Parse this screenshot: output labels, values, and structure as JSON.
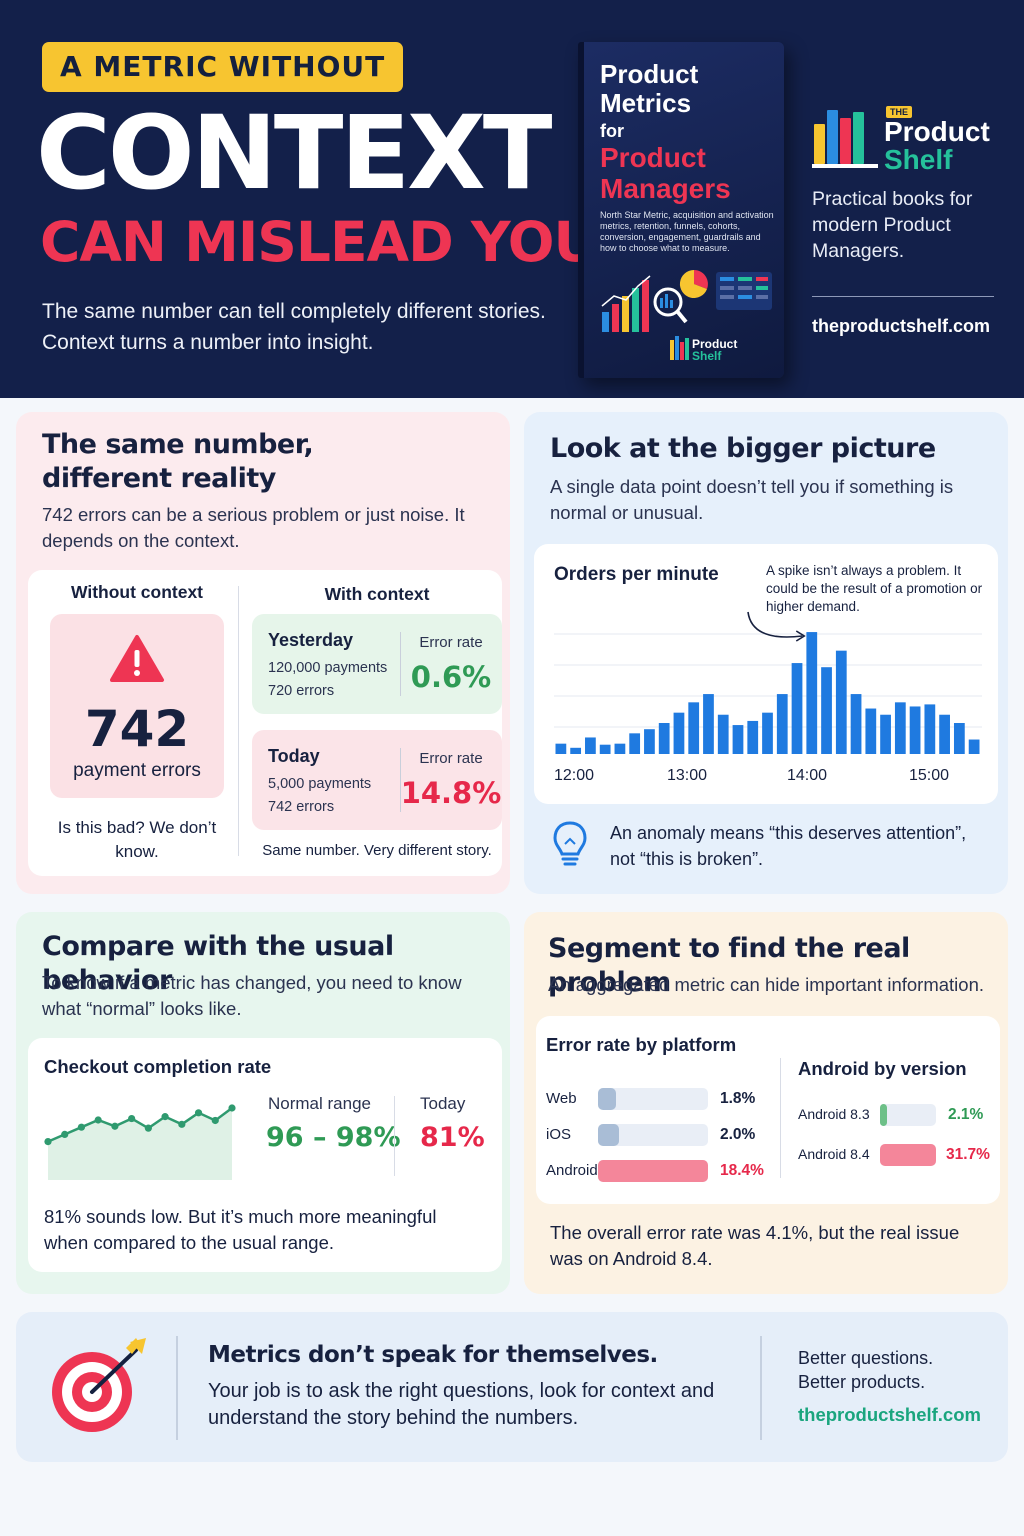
{
  "header": {
    "tag": "A METRIC WITHOUT",
    "headline": "CONTEXT",
    "headline_red": "CAN MISLEAD YOU",
    "subtitle": "The same number can tell completely different stories. Context turns a number into insight.",
    "book": {
      "title_line1": "Product Metrics",
      "title_for": "for",
      "title_red": "Product Managers",
      "description": "North Star Metric, acquisition and activation metrics, retention, funnels, cohorts, conversion, engagement, guardrails and how to choose what to measure.",
      "brand_line1": "Product",
      "brand_line2": "Shelf"
    },
    "brand": {
      "the": "THE",
      "name": "Product",
      "name2": "Shelf",
      "tagline": "Practical books for modern Product Managers.",
      "url": "theproductshelf.com",
      "colors": [
        "#f7c530",
        "#2b8de0",
        "#ee3553",
        "#25c19b"
      ]
    }
  },
  "panel_context": {
    "title": "The same number, different reality",
    "description": "742 errors can be a serious problem or just noise. It depends on the context.",
    "without": {
      "heading": "Without context",
      "icon": "warning-icon",
      "number": "742",
      "label": "payment errors",
      "question": "Is this bad? We don’t know."
    },
    "with": {
      "heading": "With context",
      "rows": [
        {
          "day": "Yesterday",
          "payments": "120,000 payments",
          "errors": "720 errors",
          "rate_label": "Error rate",
          "rate": "0.6%",
          "color": "#2f9a55"
        },
        {
          "day": "Today",
          "payments": "5,000 payments",
          "errors": "742 errors",
          "rate_label": "Error rate",
          "rate": "14.8%",
          "color": "#e6284a"
        }
      ],
      "note": "Same number. Very different story."
    }
  },
  "panel_bigger": {
    "title": "Look at the bigger picture",
    "description": "A single data point doesn’t tell you if something is normal or unusual.",
    "chart_title": "Orders per minute",
    "annotation": "A spike isn’t always a problem. It could be the result of a promotion or higher demand.",
    "tip": "An anomaly means “this deserves attention”, not “this is broken”.",
    "tip_icon": "lightbulb-icon",
    "chart_data": {
      "type": "bar",
      "title": "Orders per minute",
      "x_ticks": [
        "12:00",
        "13:00",
        "14:00",
        "15:00"
      ],
      "values": [
        10,
        6,
        16,
        9,
        10,
        20,
        24,
        30,
        40,
        50,
        58,
        38,
        28,
        32,
        40,
        58,
        88,
        118,
        84,
        100,
        58,
        44,
        38,
        50,
        46,
        48,
        38,
        30,
        14
      ],
      "peak_index": 17,
      "color": "#1f7ae0",
      "grid": true
    }
  },
  "panel_usual": {
    "title": "Compare with the usual behavior",
    "description": "To know if a metric has changed, you need to know what “normal” looks like.",
    "card_title": "Checkout completion rate",
    "normal_label": "Normal range",
    "normal_value": "96 – 98%",
    "today_label": "Today",
    "today_value": "81%",
    "note": "81% sounds low. But it’s much more meaningful when compared to the usual range.",
    "sparkline": {
      "values": [
        0.3,
        0.45,
        0.6,
        0.75,
        0.62,
        0.78,
        0.58,
        0.82,
        0.66,
        0.9,
        0.74,
        1.0
      ],
      "color": "#2f9a6f"
    }
  },
  "panel_segment": {
    "title": "Segment to find the real problem",
    "description": "An aggregated metric can hide important information.",
    "platform_title": "Error rate by platform",
    "platforms": [
      {
        "name": "Web",
        "value": "1.8%",
        "fraction": 0.16,
        "color": "#a9bdd6",
        "text_color": "#17213f"
      },
      {
        "name": "iOS",
        "value": "2.0%",
        "fraction": 0.19,
        "color": "#a9bdd6",
        "text_color": "#17213f"
      },
      {
        "name": "Android",
        "value": "18.4%",
        "fraction": 1.0,
        "color": "#f4869a",
        "text_color": "#e6284a"
      }
    ],
    "version_title": "Android by version",
    "versions": [
      {
        "name": "Android 8.3",
        "value": "2.1%",
        "fraction": 0.13,
        "color": "#6dc088",
        "text_color": "#2f9a55"
      },
      {
        "name": "Android 8.4",
        "value": "31.7%",
        "fraction": 1.0,
        "color": "#f4869a",
        "text_color": "#e6284a"
      }
    ],
    "note": "The overall error rate was 4.1%, but the real issue was on Android 8.4."
  },
  "footer": {
    "icon": "target-icon",
    "heading": "Metrics don’t speak for themselves.",
    "text": "Your job is to ask the right questions, look for context and understand the story behind the numbers.",
    "right_line1": "Better questions.",
    "right_line2": "Better products.",
    "url": "theproductshelf.com"
  }
}
